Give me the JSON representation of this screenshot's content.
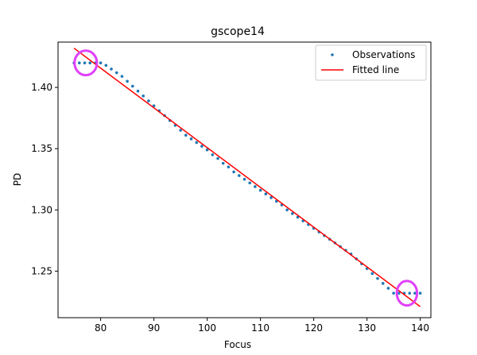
{
  "chart_data": {
    "type": "scatter",
    "title": "gscope14",
    "xlabel": "Focus",
    "ylabel": "PD",
    "xlim": [
      72,
      142
    ],
    "ylim": [
      1.212,
      1.437
    ],
    "xticks": [
      80,
      90,
      100,
      110,
      120,
      130,
      140
    ],
    "yticks": [
      1.25,
      1.3,
      1.35,
      1.4
    ],
    "ytick_labels": [
      "1.25",
      "1.30",
      "1.35",
      "1.40"
    ],
    "grid": false,
    "legend_position": "top-right",
    "series": [
      {
        "name": "Observations",
        "kind": "points",
        "color": "#1f77b4",
        "x": [
          75,
          76,
          77,
          78,
          79,
          80,
          81,
          82,
          83,
          84,
          85,
          86,
          87,
          88,
          89,
          90,
          91,
          92,
          93,
          94,
          95,
          96,
          97,
          98,
          99,
          100,
          101,
          102,
          103,
          104,
          105,
          106,
          107,
          108,
          109,
          110,
          111,
          112,
          113,
          114,
          115,
          116,
          117,
          118,
          119,
          120,
          121,
          122,
          123,
          124,
          125,
          126,
          127,
          128,
          129,
          130,
          131,
          132,
          133,
          134,
          135,
          136,
          137,
          138,
          139,
          140
        ],
        "y": [
          1.42,
          1.42,
          1.42,
          1.42,
          1.42,
          1.42,
          1.418,
          1.415,
          1.412,
          1.409,
          1.405,
          1.401,
          1.397,
          1.393,
          1.389,
          1.385,
          1.381,
          1.377,
          1.373,
          1.369,
          1.365,
          1.361,
          1.358,
          1.355,
          1.352,
          1.349,
          1.345,
          1.342,
          1.338,
          1.335,
          1.331,
          1.328,
          1.325,
          1.322,
          1.319,
          1.316,
          1.313,
          1.31,
          1.307,
          1.304,
          1.3,
          1.297,
          1.294,
          1.291,
          1.288,
          1.285,
          1.282,
          1.279,
          1.276,
          1.273,
          1.27,
          1.267,
          1.264,
          1.26,
          1.256,
          1.252,
          1.248,
          1.244,
          1.24,
          1.236,
          1.232,
          1.232,
          1.232,
          1.232,
          1.232,
          1.232
        ]
      },
      {
        "name": "Fitted line",
        "kind": "line",
        "color": "#ff0000",
        "x": [
          75,
          140
        ],
        "y": [
          1.432,
          1.221
        ]
      }
    ],
    "annotations": [
      {
        "type": "ellipse",
        "color": "#e040fb",
        "center": [
          77.2,
          1.42
        ],
        "rx_data": 2.1,
        "ry_data": 0.01
      },
      {
        "type": "ellipse",
        "color": "#e040fb",
        "center": [
          137.5,
          1.232
        ],
        "rx_data": 1.9,
        "ry_data": 0.01
      }
    ]
  }
}
